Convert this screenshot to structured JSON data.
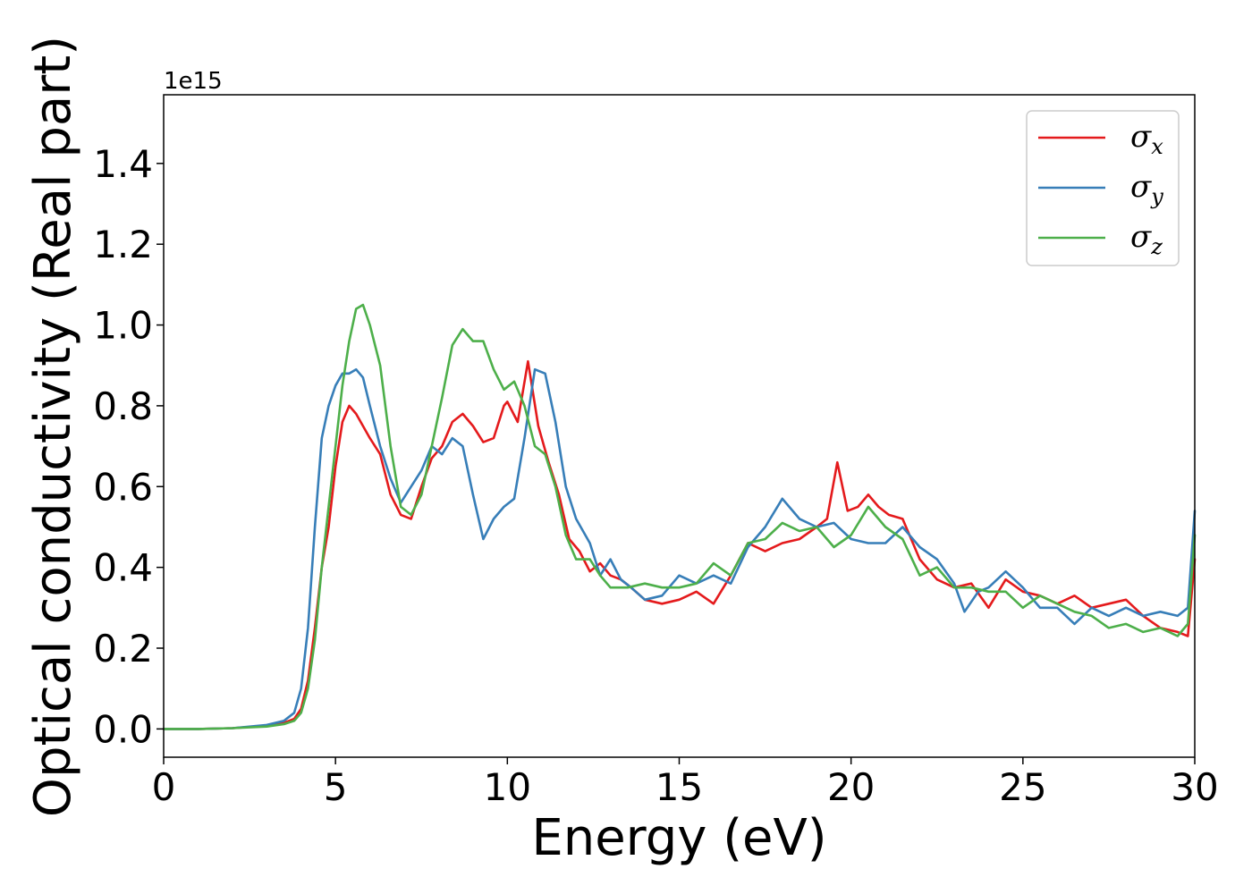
{
  "chart_data": {
    "type": "line",
    "title": "",
    "xlabel": "Energy (eV)",
    "ylabel": "Optical conductivity (Real part)",
    "y_offset_text": "1e15",
    "xlim": [
      0,
      30
    ],
    "ylim": [
      -0.07,
      1.57
    ],
    "x_ticks": [
      0,
      5,
      10,
      15,
      20,
      25,
      30
    ],
    "y_ticks": [
      0.0,
      0.2,
      0.4,
      0.6,
      0.8,
      1.0,
      1.2,
      1.4
    ],
    "x_tick_labels": [
      "0",
      "5",
      "10",
      "15",
      "20",
      "25",
      "30"
    ],
    "y_tick_labels": [
      "0.0",
      "0.2",
      "0.4",
      "0.6",
      "0.8",
      "1.0",
      "1.2",
      "1.4"
    ],
    "grid": false,
    "legend_position": "top-right",
    "series": [
      {
        "name": "σx",
        "symbol": "σ",
        "subscript": "x",
        "color": "#e41a1c",
        "x": [
          0,
          1,
          2,
          3,
          3.5,
          3.8,
          4.0,
          4.2,
          4.4,
          4.6,
          4.8,
          5.0,
          5.2,
          5.4,
          5.6,
          5.8,
          6.0,
          6.3,
          6.6,
          6.9,
          7.2,
          7.5,
          7.8,
          8.1,
          8.4,
          8.7,
          9.0,
          9.3,
          9.6,
          9.9,
          10.0,
          10.3,
          10.6,
          10.9,
          11.2,
          11.5,
          11.8,
          12.1,
          12.4,
          12.7,
          13.0,
          13.3,
          13.6,
          14.0,
          14.5,
          15.0,
          15.5,
          16.0,
          16.5,
          17.0,
          17.5,
          18.0,
          18.5,
          19.0,
          19.3,
          19.6,
          19.9,
          20.2,
          20.5,
          20.8,
          21.1,
          21.5,
          22.0,
          22.5,
          23.0,
          23.5,
          24.0,
          24.5,
          25.0,
          25.5,
          26.0,
          26.5,
          27.0,
          27.5,
          28.0,
          28.5,
          29.0,
          29.5,
          29.8,
          30.0
        ],
        "y": [
          0.0,
          0.0,
          0.002,
          0.008,
          0.015,
          0.025,
          0.05,
          0.12,
          0.25,
          0.4,
          0.5,
          0.65,
          0.76,
          0.8,
          0.78,
          0.75,
          0.72,
          0.68,
          0.58,
          0.53,
          0.52,
          0.6,
          0.67,
          0.7,
          0.76,
          0.78,
          0.75,
          0.71,
          0.72,
          0.8,
          0.81,
          0.76,
          0.91,
          0.75,
          0.66,
          0.58,
          0.47,
          0.44,
          0.39,
          0.41,
          0.38,
          0.37,
          0.35,
          0.32,
          0.31,
          0.32,
          0.34,
          0.31,
          0.38,
          0.46,
          0.44,
          0.46,
          0.47,
          0.5,
          0.52,
          0.66,
          0.54,
          0.55,
          0.58,
          0.55,
          0.53,
          0.52,
          0.42,
          0.37,
          0.35,
          0.36,
          0.3,
          0.37,
          0.34,
          0.33,
          0.31,
          0.33,
          0.3,
          0.31,
          0.32,
          0.28,
          0.25,
          0.24,
          0.23,
          0.42
        ]
      },
      {
        "name": "σy",
        "symbol": "σ",
        "subscript": "y",
        "color": "#377eb8",
        "x": [
          0,
          1,
          2,
          3,
          3.5,
          3.8,
          4.0,
          4.2,
          4.4,
          4.6,
          4.8,
          5.0,
          5.2,
          5.4,
          5.6,
          5.8,
          6.0,
          6.3,
          6.6,
          6.9,
          7.2,
          7.5,
          7.8,
          8.1,
          8.4,
          8.7,
          9.0,
          9.3,
          9.6,
          9.9,
          10.2,
          10.5,
          10.8,
          11.1,
          11.4,
          11.7,
          12.0,
          12.4,
          12.7,
          13.0,
          13.3,
          13.6,
          14.0,
          14.5,
          15.0,
          15.5,
          16.0,
          16.5,
          17.0,
          17.5,
          18.0,
          18.5,
          19.0,
          19.5,
          20.0,
          20.5,
          21.0,
          21.5,
          22.0,
          22.5,
          23.0,
          23.3,
          23.7,
          24.0,
          24.5,
          25.0,
          25.5,
          26.0,
          26.5,
          27.0,
          27.5,
          28.0,
          28.5,
          29.0,
          29.5,
          29.8,
          30.0
        ],
        "y": [
          0.0,
          0.0,
          0.002,
          0.01,
          0.02,
          0.04,
          0.1,
          0.25,
          0.5,
          0.72,
          0.8,
          0.85,
          0.88,
          0.88,
          0.89,
          0.87,
          0.8,
          0.7,
          0.62,
          0.56,
          0.6,
          0.64,
          0.7,
          0.68,
          0.72,
          0.7,
          0.58,
          0.47,
          0.52,
          0.55,
          0.57,
          0.72,
          0.89,
          0.88,
          0.76,
          0.6,
          0.52,
          0.46,
          0.38,
          0.42,
          0.37,
          0.35,
          0.32,
          0.33,
          0.38,
          0.36,
          0.38,
          0.36,
          0.45,
          0.5,
          0.57,
          0.52,
          0.5,
          0.51,
          0.47,
          0.46,
          0.46,
          0.5,
          0.45,
          0.42,
          0.36,
          0.29,
          0.34,
          0.35,
          0.39,
          0.35,
          0.3,
          0.3,
          0.26,
          0.3,
          0.28,
          0.3,
          0.28,
          0.29,
          0.28,
          0.3,
          0.54
        ]
      },
      {
        "name": "σz",
        "symbol": "σ",
        "subscript": "z",
        "color": "#4daf4a",
        "x": [
          0,
          1,
          2,
          3,
          3.5,
          3.8,
          4.0,
          4.2,
          4.4,
          4.6,
          4.8,
          5.0,
          5.2,
          5.4,
          5.6,
          5.8,
          6.0,
          6.3,
          6.6,
          6.9,
          7.2,
          7.5,
          7.8,
          8.1,
          8.4,
          8.7,
          9.0,
          9.3,
          9.6,
          9.9,
          10.2,
          10.5,
          10.8,
          11.1,
          11.4,
          11.7,
          12.0,
          12.4,
          12.7,
          13.0,
          13.5,
          14.0,
          14.5,
          15.0,
          15.5,
          16.0,
          16.5,
          17.0,
          17.5,
          18.0,
          18.5,
          19.0,
          19.5,
          20.0,
          20.5,
          21.0,
          21.5,
          22.0,
          22.5,
          23.0,
          23.5,
          24.0,
          24.5,
          25.0,
          25.5,
          26.0,
          26.5,
          27.0,
          27.5,
          28.0,
          28.5,
          29.0,
          29.5,
          29.8,
          30.0
        ],
        "y": [
          0.0,
          0.0,
          0.002,
          0.006,
          0.012,
          0.02,
          0.04,
          0.1,
          0.22,
          0.4,
          0.55,
          0.7,
          0.85,
          0.96,
          1.04,
          1.05,
          1.0,
          0.9,
          0.7,
          0.55,
          0.53,
          0.58,
          0.7,
          0.82,
          0.95,
          0.99,
          0.96,
          0.96,
          0.89,
          0.84,
          0.86,
          0.8,
          0.7,
          0.68,
          0.6,
          0.48,
          0.42,
          0.42,
          0.38,
          0.35,
          0.35,
          0.36,
          0.35,
          0.35,
          0.36,
          0.41,
          0.38,
          0.46,
          0.47,
          0.51,
          0.49,
          0.5,
          0.45,
          0.48,
          0.55,
          0.5,
          0.47,
          0.38,
          0.4,
          0.35,
          0.35,
          0.34,
          0.34,
          0.3,
          0.33,
          0.31,
          0.29,
          0.28,
          0.25,
          0.26,
          0.24,
          0.25,
          0.23,
          0.26,
          0.48
        ]
      }
    ]
  }
}
